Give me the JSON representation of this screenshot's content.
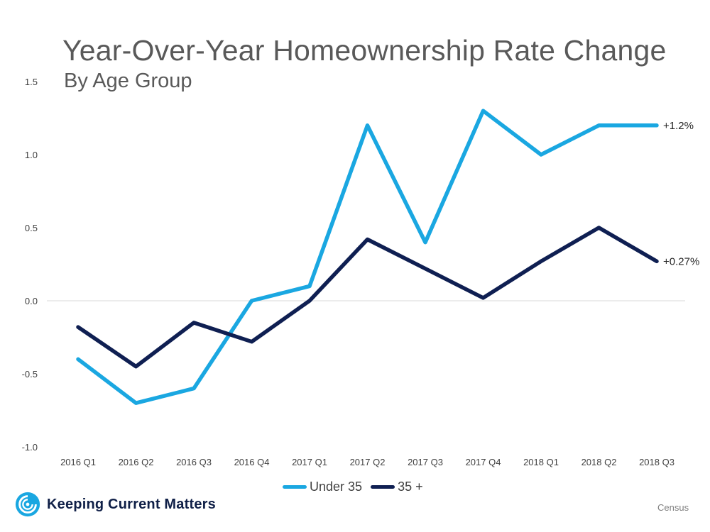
{
  "chart_data": {
    "type": "line",
    "title": "Year-Over-Year Homeownership Rate Change",
    "subtitle": "By Age Group",
    "categories": [
      "2016 Q1",
      "2016 Q2",
      "2016 Q3",
      "2016 Q4",
      "2017 Q1",
      "2017 Q2",
      "2017 Q3",
      "2017 Q4",
      "2018 Q1",
      "2018 Q2",
      "2018 Q3"
    ],
    "ylim": [
      -1.0,
      1.5
    ],
    "yticks": [
      "1.5",
      "1.0",
      "0.5",
      "0.0",
      "-0.5",
      "-1.0"
    ],
    "ytick_values": [
      1.5,
      1.0,
      0.5,
      0.0,
      -0.5,
      -1.0
    ],
    "grid": false,
    "legend_position": "bottom",
    "series": [
      {
        "name": "Under 35",
        "color": "#1aa7e1",
        "values": [
          -0.4,
          -0.7,
          -0.6,
          0.0,
          0.1,
          1.2,
          0.4,
          1.3,
          1.0,
          1.2,
          1.2
        ],
        "end_label": "+1.2%"
      },
      {
        "name": "35 +",
        "color": "#0f1f52",
        "values": [
          -0.18,
          -0.45,
          -0.15,
          -0.28,
          0.0,
          0.42,
          0.22,
          0.02,
          0.27,
          0.5,
          0.27
        ],
        "end_label": "+0.27%"
      }
    ]
  },
  "brand": {
    "name": "Keeping Current Matters",
    "color": "#0f1f47",
    "icon": "swirl-logo-icon"
  },
  "source": "Census"
}
